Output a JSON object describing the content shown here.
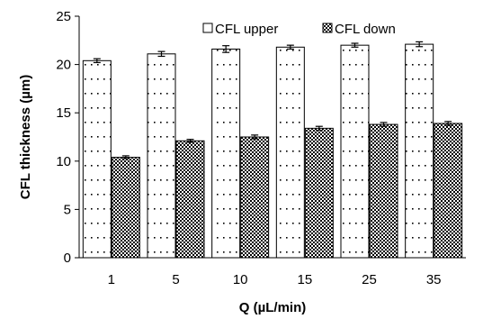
{
  "chart_data": {
    "type": "bar",
    "xlabel": "Q (µL/min)",
    "ylabel": "CFL thickness (µm)",
    "categories": [
      "1",
      "5",
      "10",
      "15",
      "25",
      "35"
    ],
    "ylim": [
      0,
      25
    ],
    "yticks": [
      0,
      5,
      10,
      15,
      20,
      25
    ],
    "grid": false,
    "legend_position": "top-right",
    "series": [
      {
        "name": "CFL upper",
        "pattern": "sparse-dots",
        "values": [
          20.4,
          21.1,
          21.6,
          21.8,
          22.0,
          22.1
        ],
        "errors": [
          0.2,
          0.25,
          0.35,
          0.2,
          0.2,
          0.25
        ]
      },
      {
        "name": "CFL down",
        "pattern": "checkerboard",
        "values": [
          10.4,
          12.1,
          12.5,
          13.4,
          13.8,
          13.9
        ],
        "errors": [
          0.15,
          0.15,
          0.2,
          0.2,
          0.2,
          0.2
        ]
      }
    ]
  }
}
